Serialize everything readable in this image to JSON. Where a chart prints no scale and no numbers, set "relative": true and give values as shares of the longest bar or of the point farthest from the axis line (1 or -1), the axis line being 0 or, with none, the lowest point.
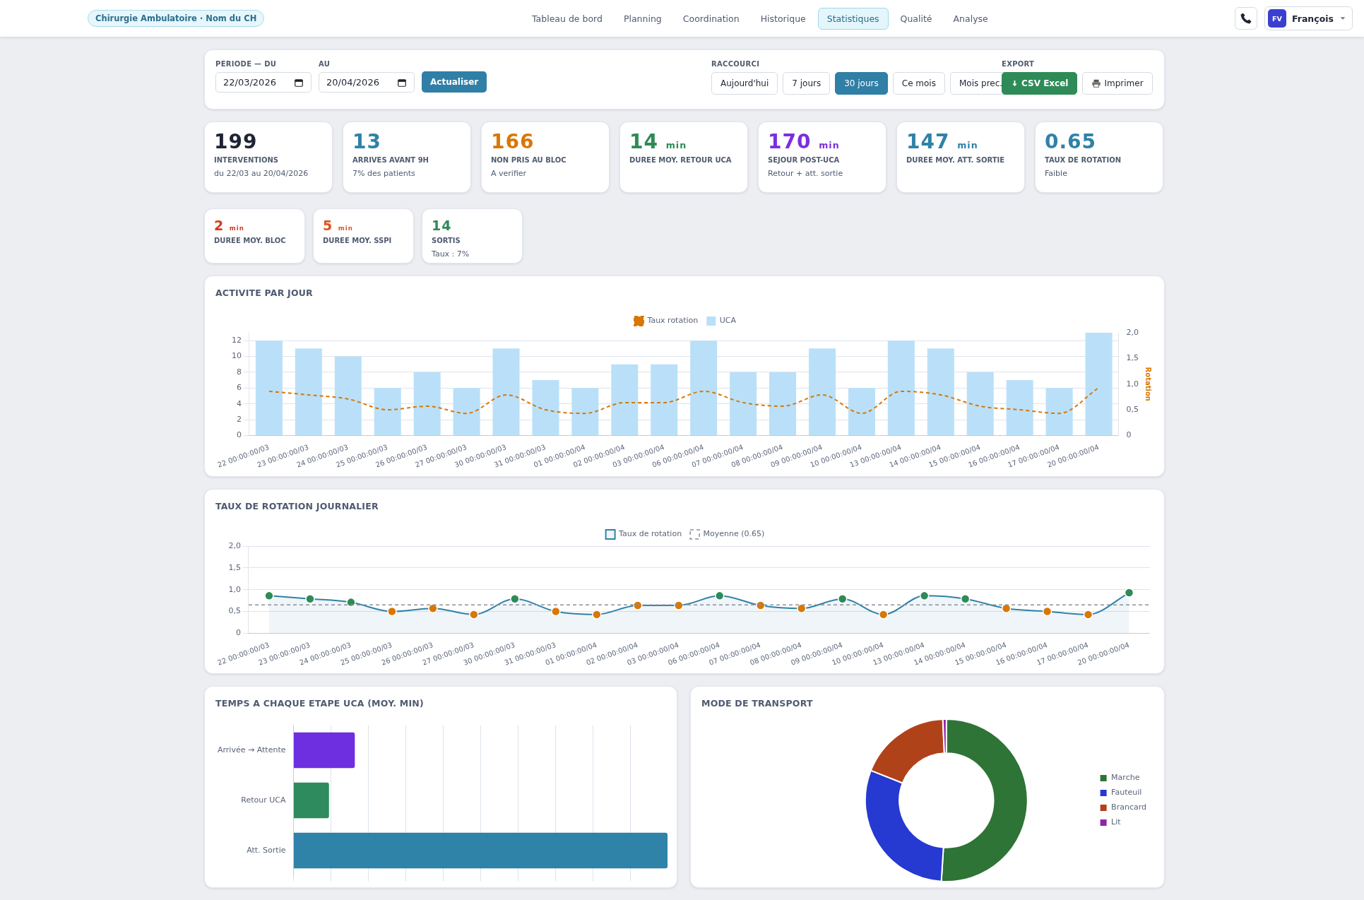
{
  "chart_data": [
    {
      "type": "other",
      "title": "Chirurgie Ambulatoire · Nom du CH",
      "annotations": [
        "Tableau de bord",
        "Planning",
        "Coordination",
        "Historique",
        "Statistiques",
        "Qualité",
        "Analyse",
        "FV",
        "François"
      ]
    },
    {
      "type": "other",
      "annotations": [
        "PERIODE — DU",
        "22/03/2026",
        "AU",
        "20/04/2026",
        "Actualiser",
        "RACCOURCI",
        "Aujourd'hui",
        "7 jours",
        "30 jours",
        "Ce mois",
        "Mois prec.",
        "EXPORT",
        "CSV Excel",
        "Imprimer"
      ]
    },
    {
      "type": "other",
      "categories": [
        "INTERVENTIONS\ndu 22/03 au 20/04/2026",
        "ARRIVES AVANT 9H\n7% des patients",
        "NON PRIS AU BLOC\nA verifier",
        "DUREE MOY. RETOUR UCA",
        "SEJOUR POST-UCA\nRetour + att. sortie",
        "DUREE MOY. ATT. SORTIE",
        "TAUX DE ROTATION\nFaible",
        "DUREE MOY. BLOC",
        "DUREE MOY. SSPI",
        "SORTIS\nTaux : 7%"
      ],
      "values": [
        199,
        13,
        166,
        14,
        170,
        147,
        0.65,
        2,
        5,
        14
      ],
      "value_labels": [
        "199",
        "13",
        "166",
        "14 min",
        "170 min",
        "147 min",
        "0.65",
        "2 min",
        "5 min",
        "14"
      ]
    },
    {
      "type": "bar",
      "title": "ACTIVITE PAR JOUR",
      "y2label": "Rotation",
      "categories": [
        "22 00:00:00/03",
        "23 00:00:00/03",
        "24 00:00:00/03",
        "25 00:00:00/03",
        "26 00:00:00/03",
        "27 00:00:00/03",
        "30 00:00:00/03",
        "31 00:00:00/03",
        "01 00:00:00/04",
        "02 00:00:00/04",
        "03 00:00:00/04",
        "06 00:00:00/04",
        "07 00:00:00/04",
        "08 00:00:00/04",
        "09 00:00:00/04",
        "10 00:00:00/04",
        "13 00:00:00/04",
        "14 00:00:00/04",
        "15 00:00:00/04",
        "16 00:00:00/04",
        "17 00:00:00/04",
        "20 00:00:00/04"
      ],
      "series": [
        {
          "name": "UCA",
          "color": "#b9e0f8",
          "values": [
            12,
            11,
            10,
            6,
            8,
            6,
            11,
            7,
            6,
            9,
            9,
            12,
            8,
            8,
            11,
            6,
            12,
            11,
            8,
            7,
            6,
            13
          ]
        },
        {
          "name": "Taux rotation",
          "type": "line",
          "axis": "y2",
          "color": "#d97706",
          "line_style": "dashed",
          "marker": "none",
          "values": [
            0.86,
            0.79,
            0.71,
            0.5,
            0.57,
            0.43,
            0.79,
            0.5,
            0.43,
            0.64,
            0.64,
            0.86,
            0.64,
            0.57,
            0.79,
            0.43,
            0.86,
            0.79,
            0.57,
            0.5,
            0.43,
            0.93
          ]
        }
      ],
      "ylim": [
        0,
        13
      ],
      "yticks": [
        0,
        2,
        4,
        6,
        8,
        10,
        12
      ],
      "y2lim": [
        0,
        2
      ],
      "y2ticks": [
        0,
        {
          "value": 0.5,
          "label": "0,5"
        },
        {
          "value": 1,
          "label": "1,0"
        },
        {
          "value": 1.5,
          "label": "1,5"
        },
        {
          "value": 2,
          "label": "2,0"
        }
      ],
      "grid": "y",
      "legend": "top"
    },
    {
      "type": "area",
      "title": "TAUX DE ROTATION JOURNALIER",
      "categories": [
        "22 00:00:00/03",
        "23 00:00:00/03",
        "24 00:00:00/03",
        "25 00:00:00/03",
        "26 00:00:00/03",
        "27 00:00:00/03",
        "30 00:00:00/03",
        "31 00:00:00/03",
        "01 00:00:00/04",
        "02 00:00:00/04",
        "03 00:00:00/04",
        "06 00:00:00/04",
        "07 00:00:00/04",
        "08 00:00:00/04",
        "09 00:00:00/04",
        "10 00:00:00/04",
        "13 00:00:00/04",
        "14 00:00:00/04",
        "15 00:00:00/04",
        "16 00:00:00/04",
        "17 00:00:00/04",
        "20 00:00:00/04"
      ],
      "series": [
        {
          "name": "Taux de rotation",
          "color": "#2f82a8",
          "colors": [
            "#2e8b57",
            "#2e8b57",
            "#2e8b57",
            "#d97706",
            "#d97706",
            "#d97706",
            "#2e8b57",
            "#d97706",
            "#d97706",
            "#d97706",
            "#d97706",
            "#2e8b57",
            "#d97706",
            "#d97706",
            "#2e8b57",
            "#d97706",
            "#2e8b57",
            "#2e8b57",
            "#d97706",
            "#d97706",
            "#d97706",
            "#2e8b57"
          ],
          "values": [
            0.86,
            0.79,
            0.71,
            0.5,
            0.57,
            0.43,
            0.79,
            0.5,
            0.43,
            0.64,
            0.64,
            0.86,
            0.64,
            0.57,
            0.79,
            0.43,
            0.86,
            0.79,
            0.57,
            0.5,
            0.43,
            0.93
          ]
        }
      ],
      "ylim": [
        0,
        2
      ],
      "yticks": [
        0,
        {
          "value": 0.5,
          "label": "0,5"
        },
        {
          "value": 1,
          "label": "1,0"
        },
        {
          "value": 1.5,
          "label": "1,5"
        },
        {
          "value": 2,
          "label": "2,0"
        }
      ],
      "ref_lines": [
        {
          "axis": "y",
          "value": 0.65,
          "label": "Moyenne (0.65)",
          "color": "#8a8f9c",
          "line_style": "dashed"
        }
      ],
      "grid": "y",
      "legend": "top",
      "marker": "circle"
    },
    {
      "type": "bar",
      "title": "TEMPS A CHAQUE ETAPE UCA (MOY. MIN)",
      "orientation": "horizontal",
      "relative": true,
      "categories": [
        "Arrivée → Attente",
        "Retour UCA",
        "Att. Sortie"
      ],
      "values": [
        0.164,
        0.095,
        1
      ],
      "colors": [
        "#6d2fe0",
        "#2e8b5e",
        "#2f82a8"
      ],
      "grid": "x"
    },
    {
      "type": "donut",
      "title": "MODE DE TRANSPORT",
      "categories": [
        "Marche",
        "Fauteuil",
        "Brancard",
        "Lit"
      ],
      "values": [
        51,
        30,
        18.3,
        0.7
      ],
      "colors": [
        "#2d7436",
        "#2639d1",
        "#b0421a",
        "#8e24aa"
      ],
      "legend": "right"
    }
  ]
}
